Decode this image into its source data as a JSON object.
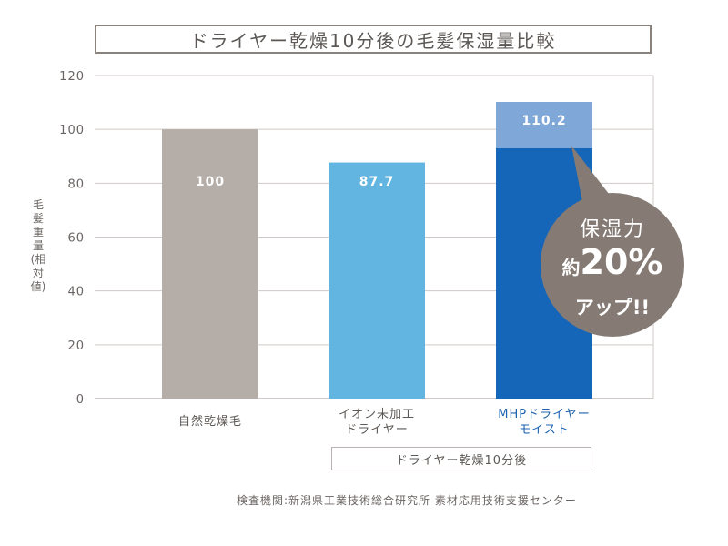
{
  "chart_data": {
    "type": "bar",
    "title": "ドライヤー乾燥10分後の毛髪保湿量比較",
    "ylabel": "毛髪重量(相対値)",
    "xlabel": "",
    "ylim": [
      0,
      120
    ],
    "yticks": [
      0,
      20,
      40,
      60,
      80,
      100,
      120
    ],
    "grid": true,
    "categories": [
      "自然乾燥毛",
      "イオン未加工\nドライヤー",
      "MHPドライヤー\nモイスト"
    ],
    "values": [
      100,
      87.7,
      110.2
    ],
    "value_labels": [
      "100",
      "87.7",
      "110.2"
    ],
    "bar_colors": [
      "#b5ada8",
      "#62b5e0",
      "#1565b8"
    ],
    "highlight_bottom_color": "#1565b8",
    "highlight_top_color": "#7fa7d8",
    "highlight_split_value": 93,
    "group_label": "ドライヤー乾燥10分後",
    "callout": {
      "line1": "保湿力",
      "line2_prefix": "約",
      "line2_big": "20%",
      "line3": "アップ!!",
      "color": "#857b74"
    },
    "source": "検査機関:新潟県工業技術総合研究所 素材応用技術支援センター"
  }
}
